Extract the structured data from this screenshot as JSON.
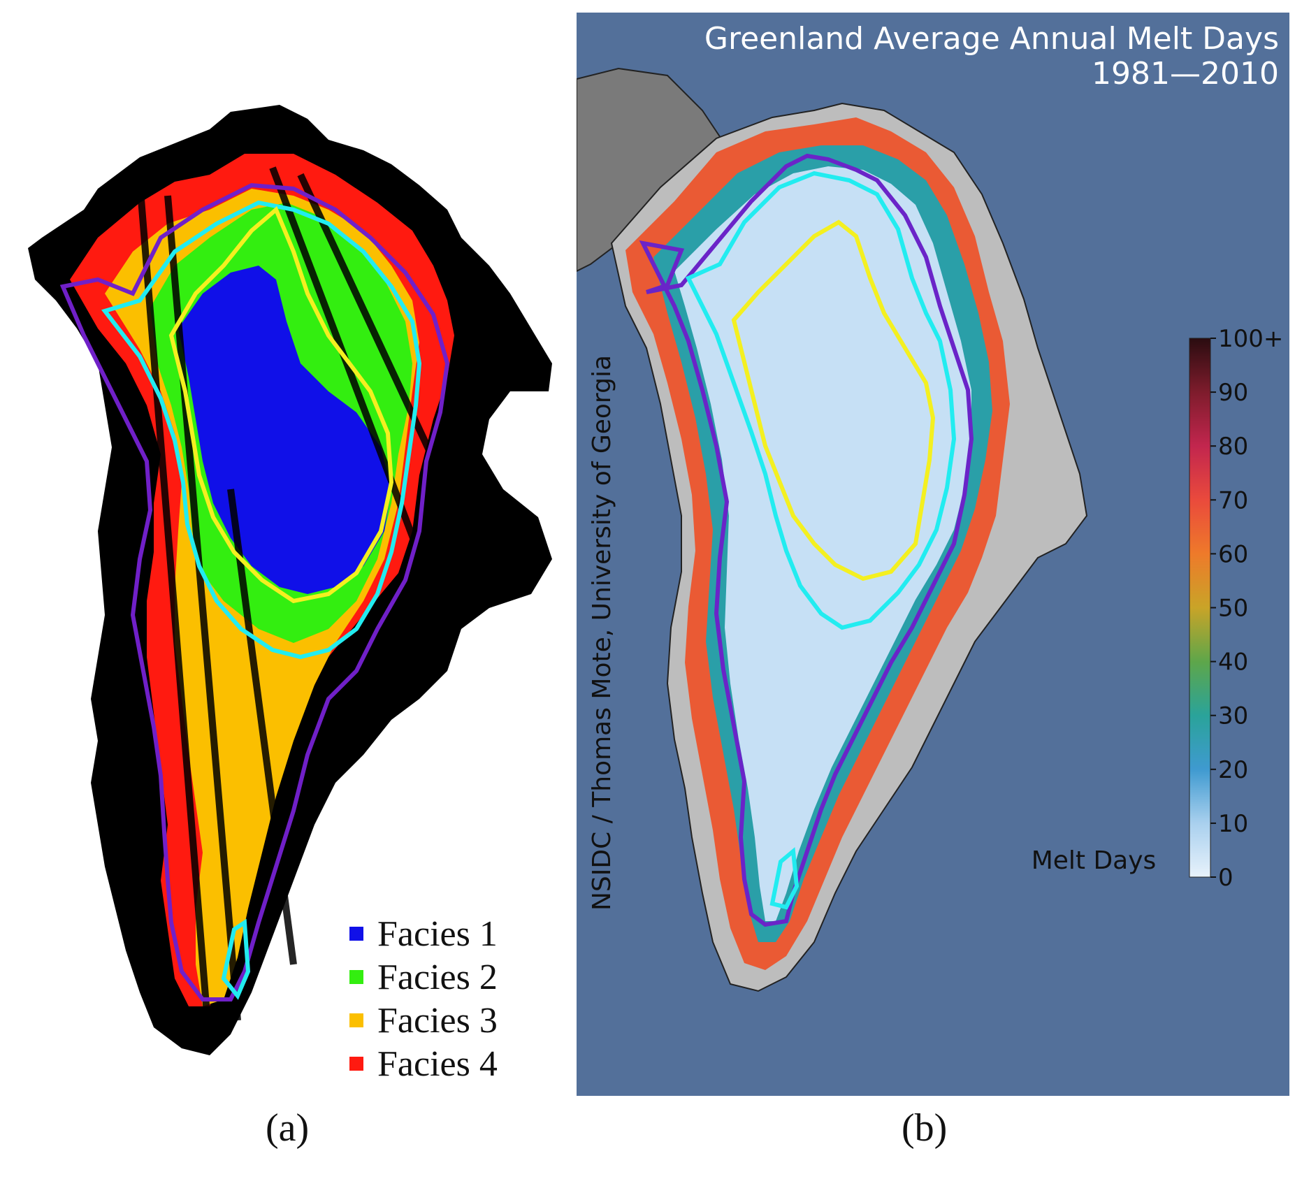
{
  "panel_a": {
    "caption": "(a)",
    "legend": [
      {
        "label": "Facies 1",
        "color": "#1010e8"
      },
      {
        "label": "Facies 2",
        "color": "#33ee10"
      },
      {
        "label": "Facies 3",
        "color": "#fbbf00"
      },
      {
        "label": "Facies 4",
        "color": "#ff1a10"
      }
    ],
    "outline_colors": {
      "purple": "#7020c8",
      "cyan": "#22ecf0",
      "yellow": "#f4f020"
    }
  },
  "panel_b": {
    "caption": "(b)",
    "title_line1": "Greenland Average Annual Melt Days",
    "title_line2": "1981—2010",
    "credit": "NSIDC / Thomas Mote, University of Georgia",
    "background_color": "#53709a",
    "colorbar": {
      "label": "Melt Days",
      "ticks": [
        "0",
        "10",
        "20",
        "30",
        "40",
        "50",
        "60",
        "70",
        "80",
        "90",
        "100+"
      ]
    }
  }
}
